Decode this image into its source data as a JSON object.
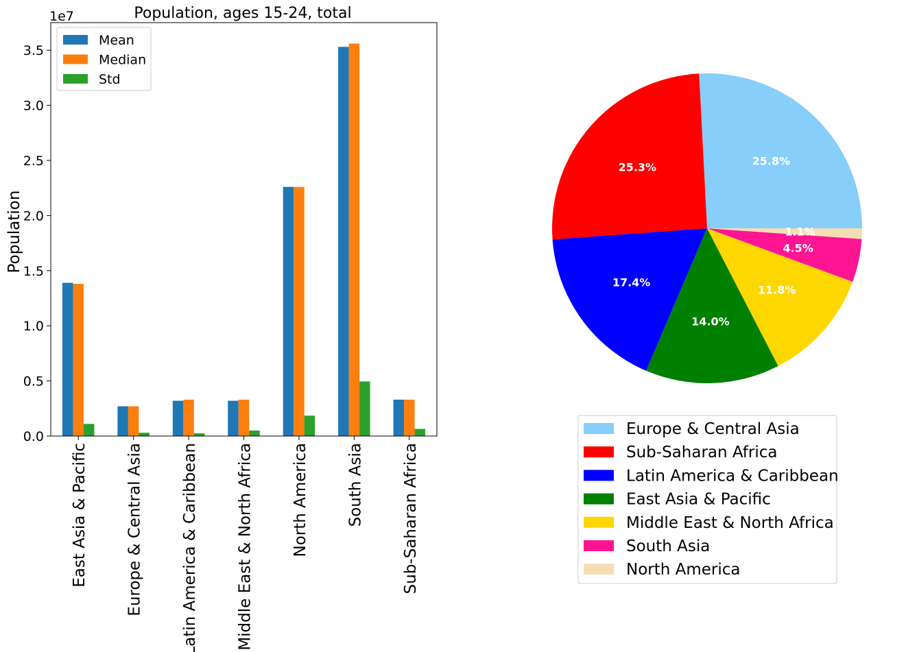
{
  "chart_data": [
    {
      "type": "bar",
      "title": "Population, ages 15-24, total",
      "xlabel": "",
      "ylabel": "Population",
      "scale_label": "1e7",
      "ylim": [
        0,
        3.75
      ],
      "yticks": [
        "0.0",
        "0.5",
        "1.0",
        "1.5",
        "2.0",
        "2.5",
        "3.0",
        "3.5"
      ],
      "grid": false,
      "legend_position": "top-left",
      "categories": [
        "East Asia & Pacific",
        "Europe & Central Asia",
        "Latin America & Caribbean",
        "Middle East & North Africa",
        "North America",
        "South Asia",
        "Sub-Saharan Africa"
      ],
      "series": [
        {
          "name": "Mean",
          "color": "#1f77b4",
          "values": [
            1.39,
            0.27,
            0.32,
            0.32,
            2.26,
            3.53,
            0.33
          ]
        },
        {
          "name": "Median",
          "color": "#ff7f0e",
          "values": [
            1.38,
            0.27,
            0.33,
            0.33,
            2.26,
            3.56,
            0.33
          ]
        },
        {
          "name": "Std",
          "color": "#2ca02c",
          "values": [
            0.11,
            0.03,
            0.025,
            0.05,
            0.185,
            0.495,
            0.065
          ]
        }
      ]
    },
    {
      "type": "pie",
      "legend_position": "below",
      "slices": [
        {
          "label": "Europe & Central Asia",
          "value": 25.8,
          "pct_label": "25.8%",
          "color": "#87cefa"
        },
        {
          "label": "Sub-Saharan Africa",
          "value": 25.3,
          "pct_label": "25.3%",
          "color": "#ff0000"
        },
        {
          "label": "Latin America & Caribbean",
          "value": 17.4,
          "pct_label": "17.4%",
          "color": "#0000ff"
        },
        {
          "label": "East Asia & Pacific",
          "value": 14.0,
          "pct_label": "14.0%",
          "color": "#008000"
        },
        {
          "label": "Middle East & North Africa",
          "value": 11.8,
          "pct_label": "11.8%",
          "color": "#ffd700"
        },
        {
          "label": "South Asia",
          "value": 4.5,
          "pct_label": "4.5%",
          "color": "#ff1493"
        },
        {
          "label": "North America",
          "value": 1.1,
          "pct_label": "1.1%",
          "color": "#f5deb3"
        }
      ]
    }
  ]
}
